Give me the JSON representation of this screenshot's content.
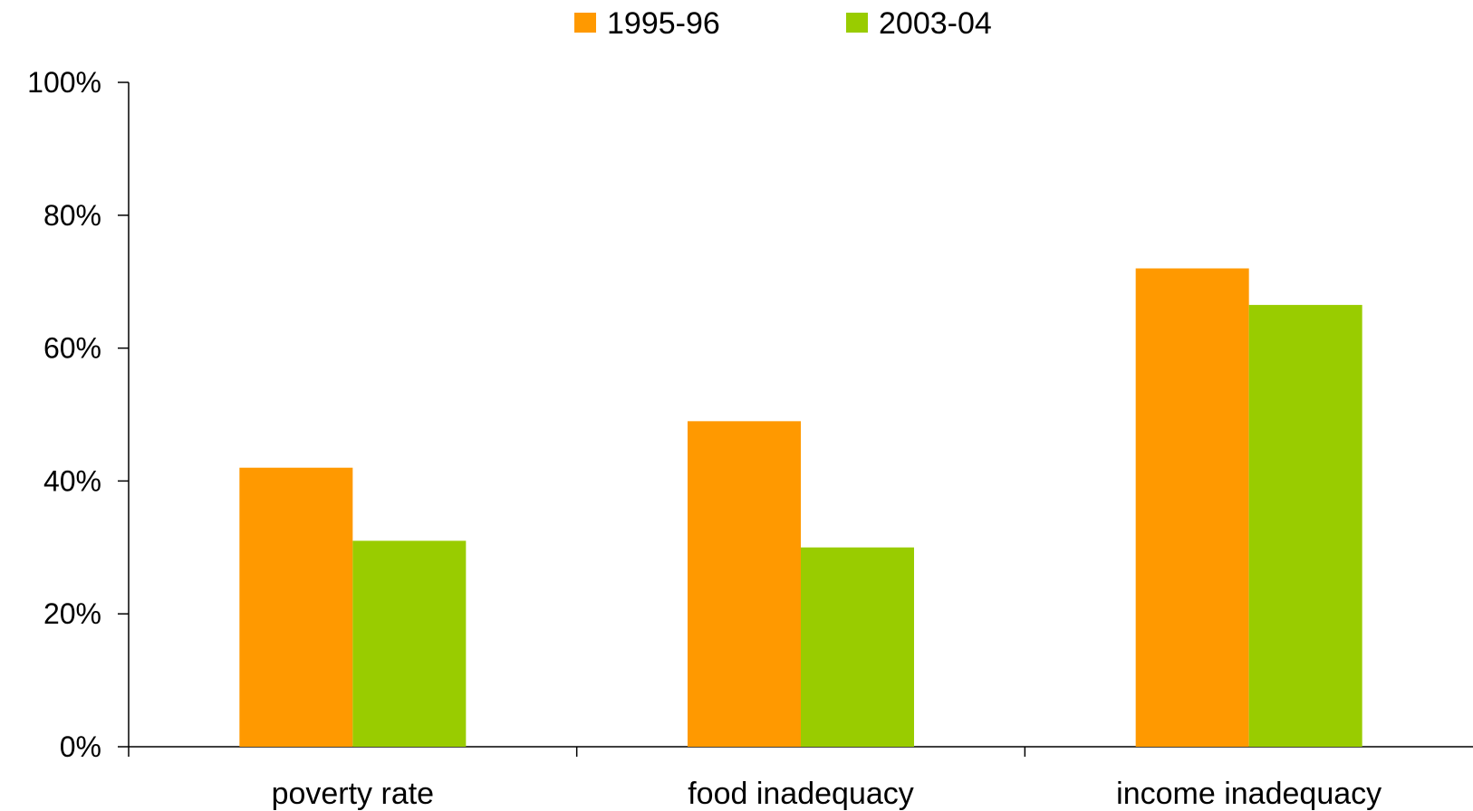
{
  "chart_data": {
    "type": "bar",
    "categories": [
      "poverty rate",
      "food inadequacy",
      "income inadequacy"
    ],
    "series": [
      {
        "name": "1995-96",
        "color": "#FF9900",
        "values": [
          42,
          49,
          72
        ]
      },
      {
        "name": "2003-04",
        "color": "#99CC00",
        "values": [
          31,
          30,
          66.5
        ]
      }
    ],
    "ylim": [
      0,
      100
    ],
    "yticks": [
      0,
      20,
      40,
      60,
      80,
      100
    ],
    "ytick_labels": [
      "0%",
      "20%",
      "40%",
      "60%",
      "80%",
      "100%"
    ],
    "legend_position": "top-center",
    "grid": false
  }
}
